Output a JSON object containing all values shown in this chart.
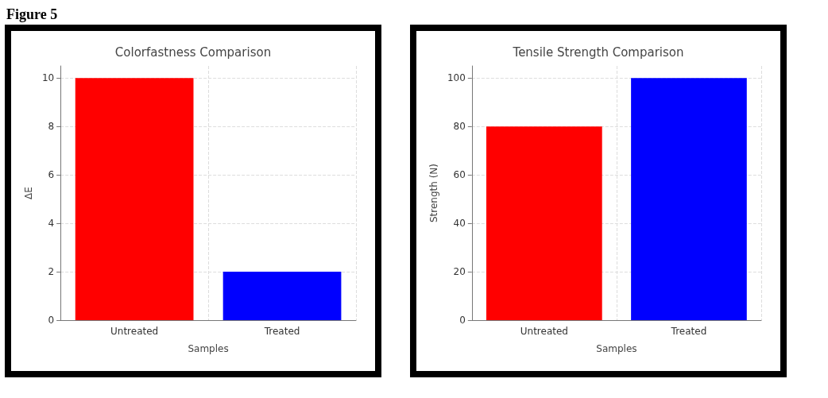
{
  "chart_data": [
    {
      "type": "bar",
      "title": "Colorfastness Comparison",
      "xlabel": "Samples",
      "ylabel": "ΔE",
      "categories": [
        "Untreated",
        "Treated"
      ],
      "colors": [
        "#ff0000",
        "#0000ff"
      ],
      "values": [
        10,
        2
      ],
      "ylim": [
        0,
        10.5
      ],
      "yticks": [
        0,
        2,
        4,
        6,
        8,
        10
      ],
      "grid": true,
      "annotations": [
        "Figure 5"
      ]
    },
    {
      "type": "bar",
      "title": "Tensile Strength Comparison",
      "xlabel": "Samples",
      "ylabel": "Strength (N)",
      "categories": [
        "Untreated",
        "Treated"
      ],
      "colors": [
        "#ff0000",
        "#0000ff"
      ],
      "values": [
        80,
        100
      ],
      "ylim": [
        0,
        105
      ],
      "yticks": [
        0,
        20,
        40,
        60,
        80,
        100
      ],
      "grid": true
    }
  ]
}
